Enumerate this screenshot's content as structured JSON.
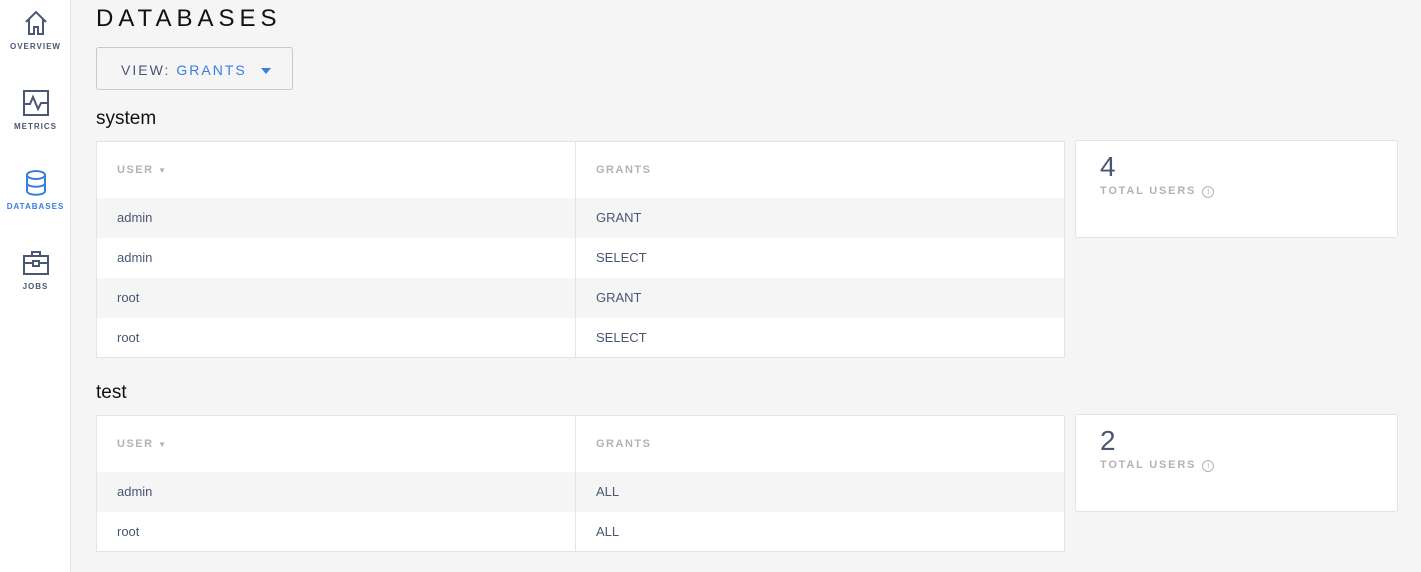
{
  "sidebar": {
    "items": [
      {
        "label": "OVERVIEW",
        "icon": "home-icon"
      },
      {
        "label": "METRICS",
        "icon": "metrics-icon"
      },
      {
        "label": "DATABASES",
        "icon": "database-icon",
        "active": true
      },
      {
        "label": "JOBS",
        "icon": "briefcase-icon"
      }
    ]
  },
  "page": {
    "title": "DATABASES",
    "view_label": "VIEW:",
    "view_value": "GRANTS"
  },
  "databases": [
    {
      "name": "system",
      "columns": [
        "USER",
        "GRANTS"
      ],
      "rows": [
        [
          "admin",
          "GRANT"
        ],
        [
          "admin",
          "SELECT"
        ],
        [
          "root",
          "GRANT"
        ],
        [
          "root",
          "SELECT"
        ]
      ],
      "total": "4",
      "total_label": "TOTAL USERS"
    },
    {
      "name": "test",
      "columns": [
        "USER",
        "GRANTS"
      ],
      "rows": [
        [
          "admin",
          "ALL"
        ],
        [
          "root",
          "ALL"
        ]
      ],
      "total": "2",
      "total_label": "TOTAL USERS"
    }
  ],
  "colors": {
    "accent": "#3a7de1",
    "text": "#4a5774"
  }
}
